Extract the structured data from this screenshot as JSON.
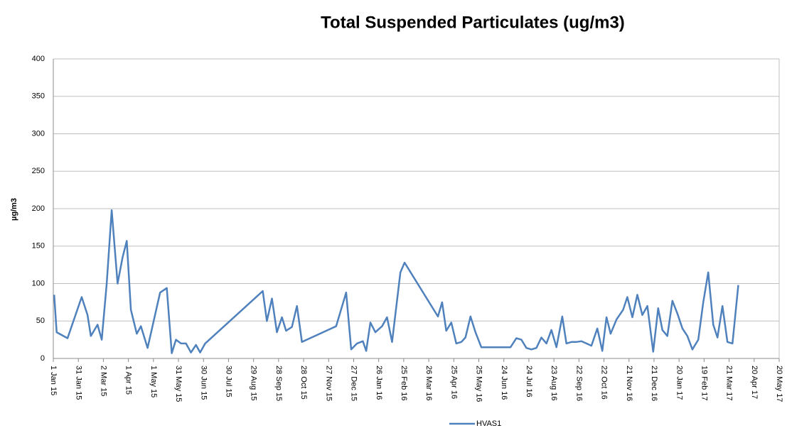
{
  "chart_data": {
    "type": "line",
    "title": "Total Suspended Particulates (ug/m3)",
    "y_label": "µg/m3",
    "series": [
      {
        "name": "HVAS1",
        "color": "#4f81bd",
        "x": [
          "2015-01-02",
          "2015-01-05",
          "2015-01-18",
          "2015-02-04",
          "2015-02-11",
          "2015-02-15",
          "2015-02-23",
          "2015-02-28",
          "2015-03-06",
          "2015-03-12",
          "2015-03-19",
          "2015-03-25",
          "2015-03-30",
          "2015-04-04",
          "2015-04-11",
          "2015-04-16",
          "2015-04-24",
          "2015-05-09",
          "2015-05-17",
          "2015-05-23",
          "2015-05-28",
          "2015-06-03",
          "2015-06-09",
          "2015-06-15",
          "2015-06-21",
          "2015-06-26",
          "2015-07-02",
          "2015-09-09",
          "2015-09-14",
          "2015-09-20",
          "2015-09-26",
          "2015-10-02",
          "2015-10-07",
          "2015-10-14",
          "2015-10-20",
          "2015-10-26",
          "2015-12-06",
          "2015-12-18",
          "2015-12-24",
          "2015-12-31",
          "2016-01-07",
          "2016-01-11",
          "2016-01-16",
          "2016-01-22",
          "2016-01-30",
          "2016-02-05",
          "2016-02-11",
          "2016-02-21",
          "2016-02-26",
          "2016-04-06",
          "2016-04-11",
          "2016-04-16",
          "2016-04-22",
          "2016-04-28",
          "2016-05-04",
          "2016-05-09",
          "2016-05-15",
          "2016-05-21",
          "2016-05-28",
          "2016-07-02",
          "2016-07-09",
          "2016-07-15",
          "2016-07-21",
          "2016-07-27",
          "2016-08-02",
          "2016-08-08",
          "2016-08-14",
          "2016-08-20",
          "2016-08-26",
          "2016-09-02",
          "2016-09-07",
          "2016-09-13",
          "2016-09-19",
          "2016-09-25",
          "2016-10-01",
          "2016-10-07",
          "2016-10-14",
          "2016-10-20",
          "2016-10-25",
          "2016-10-30",
          "2016-11-06",
          "2016-11-14",
          "2016-11-19",
          "2016-11-25",
          "2016-12-01",
          "2016-12-07",
          "2016-12-13",
          "2016-12-20",
          "2016-12-26",
          "2016-12-31",
          "2017-01-06",
          "2017-01-12",
          "2017-01-18",
          "2017-01-24",
          "2017-01-30",
          "2017-02-05",
          "2017-02-12",
          "2017-02-18",
          "2017-02-24",
          "2017-03-02",
          "2017-03-07",
          "2017-03-13",
          "2017-03-19",
          "2017-03-25",
          "2017-04-01"
        ],
        "values": [
          85,
          35,
          27,
          82,
          58,
          30,
          45,
          25,
          100,
          198,
          100,
          135,
          157,
          65,
          33,
          43,
          14,
          88,
          94,
          7,
          25,
          20,
          20,
          8,
          18,
          8,
          20,
          90,
          50,
          80,
          35,
          55,
          37,
          42,
          70,
          22,
          43,
          88,
          12,
          20,
          23,
          10,
          48,
          35,
          43,
          55,
          22,
          115,
          128,
          56,
          75,
          37,
          48,
          20,
          22,
          28,
          56,
          35,
          15,
          15,
          27,
          25,
          14,
          12,
          14,
          28,
          20,
          38,
          15,
          56,
          20,
          22,
          22,
          23,
          20,
          17,
          40,
          10,
          55,
          33,
          52,
          65,
          82,
          55,
          85,
          58,
          70,
          9,
          67,
          38,
          30,
          77,
          60,
          40,
          30,
          12,
          25,
          75,
          115,
          45,
          28,
          70,
          22,
          20,
          98
        ]
      }
    ],
    "xlim": [
      "2015-01-01",
      "2017-05-20"
    ],
    "xticks": [
      {
        "value": "2015-01-01",
        "label": "1 Jan 15"
      },
      {
        "value": "2015-01-31",
        "label": "31 Jan 15"
      },
      {
        "value": "2015-03-02",
        "label": "2 Mar 15"
      },
      {
        "value": "2015-04-01",
        "label": "1 Apr 15"
      },
      {
        "value": "2015-05-01",
        "label": "1 May 15"
      },
      {
        "value": "2015-05-31",
        "label": "31 May 15"
      },
      {
        "value": "2015-06-30",
        "label": "30 Jun 15"
      },
      {
        "value": "2015-07-30",
        "label": "30 Jul 15"
      },
      {
        "value": "2015-08-29",
        "label": "29 Aug 15"
      },
      {
        "value": "2015-09-28",
        "label": "28 Sep 15"
      },
      {
        "value": "2015-10-28",
        "label": "28 Oct 15"
      },
      {
        "value": "2015-11-27",
        "label": "27 Nov 15"
      },
      {
        "value": "2015-12-27",
        "label": "27 Dec 15"
      },
      {
        "value": "2016-01-26",
        "label": "26 Jan 16"
      },
      {
        "value": "2016-02-25",
        "label": "25 Feb 16"
      },
      {
        "value": "2016-03-26",
        "label": "26 Mar 16"
      },
      {
        "value": "2016-04-25",
        "label": "25 Apr 16"
      },
      {
        "value": "2016-05-25",
        "label": "25 May 16"
      },
      {
        "value": "2016-06-24",
        "label": "24 Jun 16"
      },
      {
        "value": "2016-07-24",
        "label": "24 Jul 16"
      },
      {
        "value": "2016-08-23",
        "label": "23 Aug 16"
      },
      {
        "value": "2016-09-22",
        "label": "22 Sep 16"
      },
      {
        "value": "2016-10-22",
        "label": "22 Oct 16"
      },
      {
        "value": "2016-11-21",
        "label": "21 Nov 16"
      },
      {
        "value": "2016-12-21",
        "label": "21 Dec 16"
      },
      {
        "value": "2017-01-20",
        "label": "20 Jan 17"
      },
      {
        "value": "2017-02-19",
        "label": "19 Feb 17"
      },
      {
        "value": "2017-03-21",
        "label": "21 Mar 17"
      },
      {
        "value": "2017-04-20",
        "label": "20 Apr 17"
      },
      {
        "value": "2017-05-20",
        "label": "20 May 17"
      }
    ],
    "ylim": [
      0,
      400
    ],
    "yticks": [
      0,
      50,
      100,
      150,
      200,
      250,
      300,
      350,
      400
    ],
    "grid": true,
    "legend": "bottom"
  }
}
